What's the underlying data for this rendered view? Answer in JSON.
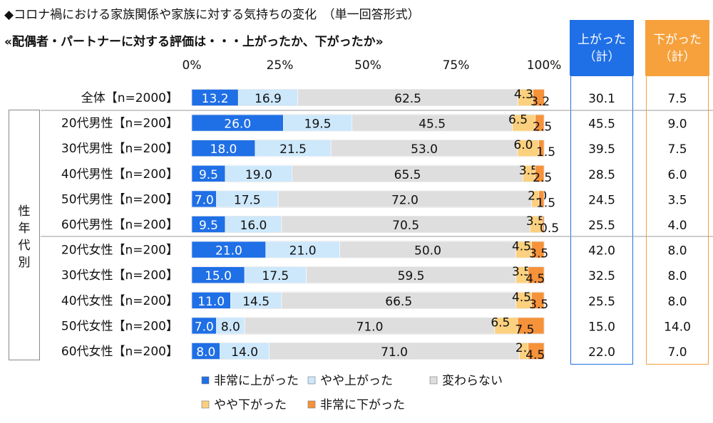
{
  "title": "◆コロナ禍における家族関係や家族に対する気持ちの変化　（単一回答形式）",
  "subtitle": "«配偶者・パートナーに対する評価は・・・上がったか、下がったか»",
  "group_label": "性年代別",
  "summary_headers": {
    "up": "上がった\n（計）",
    "down": "下がった\n（計）"
  },
  "chart_data": {
    "type": "bar",
    "orientation": "horizontal",
    "stacked": true,
    "xlim": [
      0,
      100
    ],
    "x_ticks": [
      "0%",
      "25%",
      "50%",
      "75%",
      "100%"
    ],
    "categories": [
      "全体【n=2000】",
      "20代男性【n=200】",
      "30代男性【n=200】",
      "40代男性【n=200】",
      "50代男性【n=200】",
      "60代男性【n=200】",
      "20代女性【n=200】",
      "30代女性【n=200】",
      "40代女性【n=200】",
      "50代女性【n=200】",
      "60代女性【n=200】"
    ],
    "series": [
      {
        "name": "非常に上がった",
        "color": "#1f6fe6",
        "label_color": "#ffffff",
        "values": [
          13.2,
          26.0,
          18.0,
          9.5,
          7.0,
          9.5,
          21.0,
          15.0,
          11.0,
          7.0,
          8.0
        ]
      },
      {
        "name": "やや上がった",
        "color": "#cde7fb",
        "label_color": "#111111",
        "values": [
          16.9,
          19.5,
          21.5,
          19.0,
          17.5,
          16.0,
          21.0,
          17.5,
          14.5,
          8.0,
          14.0
        ]
      },
      {
        "name": "変わらない",
        "color": "#dedede",
        "label_color": "#111111",
        "values": [
          62.5,
          45.5,
          53.0,
          65.5,
          72.0,
          70.5,
          50.0,
          59.5,
          66.5,
          71.0,
          71.0
        ]
      },
      {
        "name": "やや下がった",
        "color": "#fbd07e",
        "label_color": "#111111",
        "values": [
          4.3,
          6.5,
          6.0,
          3.5,
          2.0,
          3.5,
          4.5,
          3.5,
          4.5,
          6.5,
          2.5
        ]
      },
      {
        "name": "非常に下がった",
        "color": "#f5923a",
        "label_color": "#111111",
        "values": [
          3.2,
          2.5,
          1.5,
          2.5,
          1.5,
          0.5,
          3.5,
          4.5,
          3.5,
          7.5,
          4.5
        ]
      }
    ],
    "summary_up": [
      "30.1",
      "45.5",
      "39.5",
      "28.5",
      "24.5",
      "25.5",
      "42.0",
      "32.5",
      "25.5",
      "15.0",
      "22.0"
    ],
    "summary_down": [
      "7.5",
      "9.0",
      "7.5",
      "6.0",
      "3.5",
      "4.0",
      "8.0",
      "8.0",
      "8.0",
      "14.0",
      "7.0"
    ],
    "legend_position": "bottom"
  }
}
